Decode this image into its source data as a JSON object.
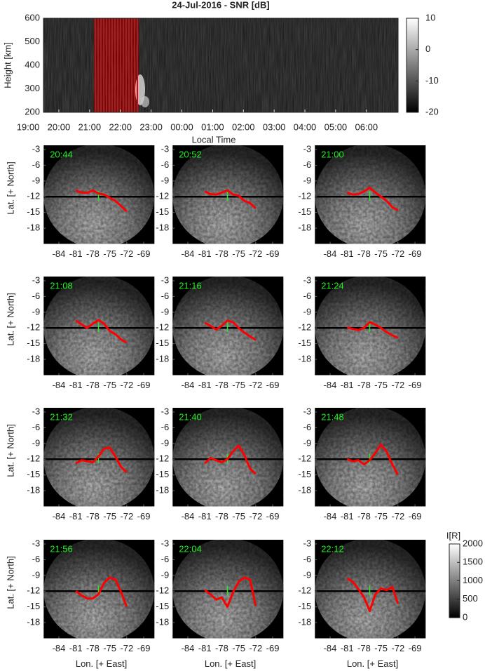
{
  "chart_data": [
    {
      "type": "heatmap",
      "title": "24-Jul-2016 - SNR [dB]",
      "ylabel": "Height [km]",
      "xlabel": "Local Time",
      "xlim": [
        19.5,
        31.03
      ],
      "ylim": [
        200,
        600
      ],
      "xticks": [
        {
          "value": 19,
          "label": "19:00"
        },
        {
          "value": 20,
          "label": "20:00"
        },
        {
          "value": 21,
          "label": "21:00"
        },
        {
          "value": 22,
          "label": "22:00"
        },
        {
          "value": 23,
          "label": "23:00"
        },
        {
          "value": 24,
          "label": "00:00"
        },
        {
          "value": 25,
          "label": "01:00"
        },
        {
          "value": 26,
          "label": "02:00"
        },
        {
          "value": 27,
          "label": "03:00"
        },
        {
          "value": 28,
          "label": "04:00"
        },
        {
          "value": 29,
          "label": "05:00"
        },
        {
          "value": 30,
          "label": "06:00"
        }
      ],
      "yticks": [
        200,
        300,
        400,
        500,
        600
      ],
      "colorbar": {
        "lim": [
          -20,
          10
        ],
        "ticks": [
          10,
          0,
          -10,
          -20
        ]
      }
    },
    {
      "type": "image-grid",
      "xlabel": "Lon. [+ East]",
      "ylabel": "Lat. [+ North]",
      "xlim": [
        -86.7,
        -67.1
      ],
      "ylim": [
        -21,
        -2.2
      ],
      "xticks": [
        -84,
        -81,
        -78,
        -75,
        -72,
        -69
      ],
      "yticks": [
        -3,
        -6,
        -9,
        -12,
        -15,
        -18
      ],
      "colorbar": {
        "label": "I[R]",
        "lim": [
          0,
          2000
        ],
        "ticks": [
          2000,
          1500,
          1000,
          500,
          0
        ]
      },
      "x": [
        -81,
        -80,
        -79,
        -78,
        -77,
        -76,
        -75,
        -74,
        -73,
        -72
      ],
      "color": "#ff0000",
      "panels": [
        {
          "title": "20:44",
          "values": [
            -10.8,
            -11.2,
            -11.3,
            -10.8,
            -11.4,
            -11.6,
            -12.2,
            -12.8,
            -13.8,
            -14.8
          ]
        },
        {
          "title": "20:52",
          "values": [
            -11.0,
            -11.5,
            -11.6,
            -11.2,
            -10.8,
            -11.6,
            -11.8,
            -12.8,
            -13.2,
            -14.2
          ]
        },
        {
          "title": "21:00",
          "values": [
            -11.2,
            -11.6,
            -11.5,
            -11.0,
            -10.3,
            -11.2,
            -12.0,
            -12.8,
            -14.0,
            -14.6
          ]
        },
        {
          "title": "21:08",
          "values": [
            -10.6,
            -11.3,
            -12.0,
            -11.2,
            -10.5,
            -11.2,
            -12.6,
            -13.2,
            -14.2,
            -14.8
          ]
        },
        {
          "title": "21:16",
          "values": [
            -11.0,
            -11.6,
            -12.3,
            -11.6,
            -10.6,
            -10.9,
            -12.0,
            -12.9,
            -13.6,
            -14.3
          ]
        },
        {
          "title": "21:24",
          "values": [
            -11.9,
            -12.2,
            -12.4,
            -12.0,
            -10.9,
            -11.4,
            -12.0,
            -12.8,
            -13.4,
            -13.9
          ]
        },
        {
          "title": "21:32",
          "values": [
            -12.8,
            -12.2,
            -12.4,
            -12.6,
            -11.5,
            -10.0,
            -9.8,
            -11.5,
            -13.5,
            -14.5
          ]
        },
        {
          "title": "21:40",
          "values": [
            -12.8,
            -11.8,
            -12.2,
            -12.6,
            -12.0,
            -10.5,
            -9.4,
            -11.2,
            -13.8,
            -14.8
          ]
        },
        {
          "title": "21:48",
          "values": [
            -12.0,
            -12.4,
            -12.2,
            -13.0,
            -12.2,
            -10.8,
            -9.2,
            -10.6,
            -13.0,
            -15.0
          ]
        },
        {
          "title": "21:56",
          "values": [
            -12.0,
            -12.8,
            -13.4,
            -13.4,
            -12.6,
            -10.4,
            -9.4,
            -9.8,
            -12.2,
            -15.0
          ]
        },
        {
          "title": "22:04",
          "values": [
            -11.8,
            -12.6,
            -13.6,
            -13.2,
            -15.0,
            -12.2,
            -10.2,
            -9.4,
            -9.8,
            -14.8
          ]
        },
        {
          "title": "22:12",
          "values": [
            -9.6,
            -10.2,
            -11.6,
            -13.2,
            -15.8,
            -12.6,
            -11.5,
            -11.8,
            -11.2,
            -14.4
          ]
        }
      ]
    }
  ]
}
